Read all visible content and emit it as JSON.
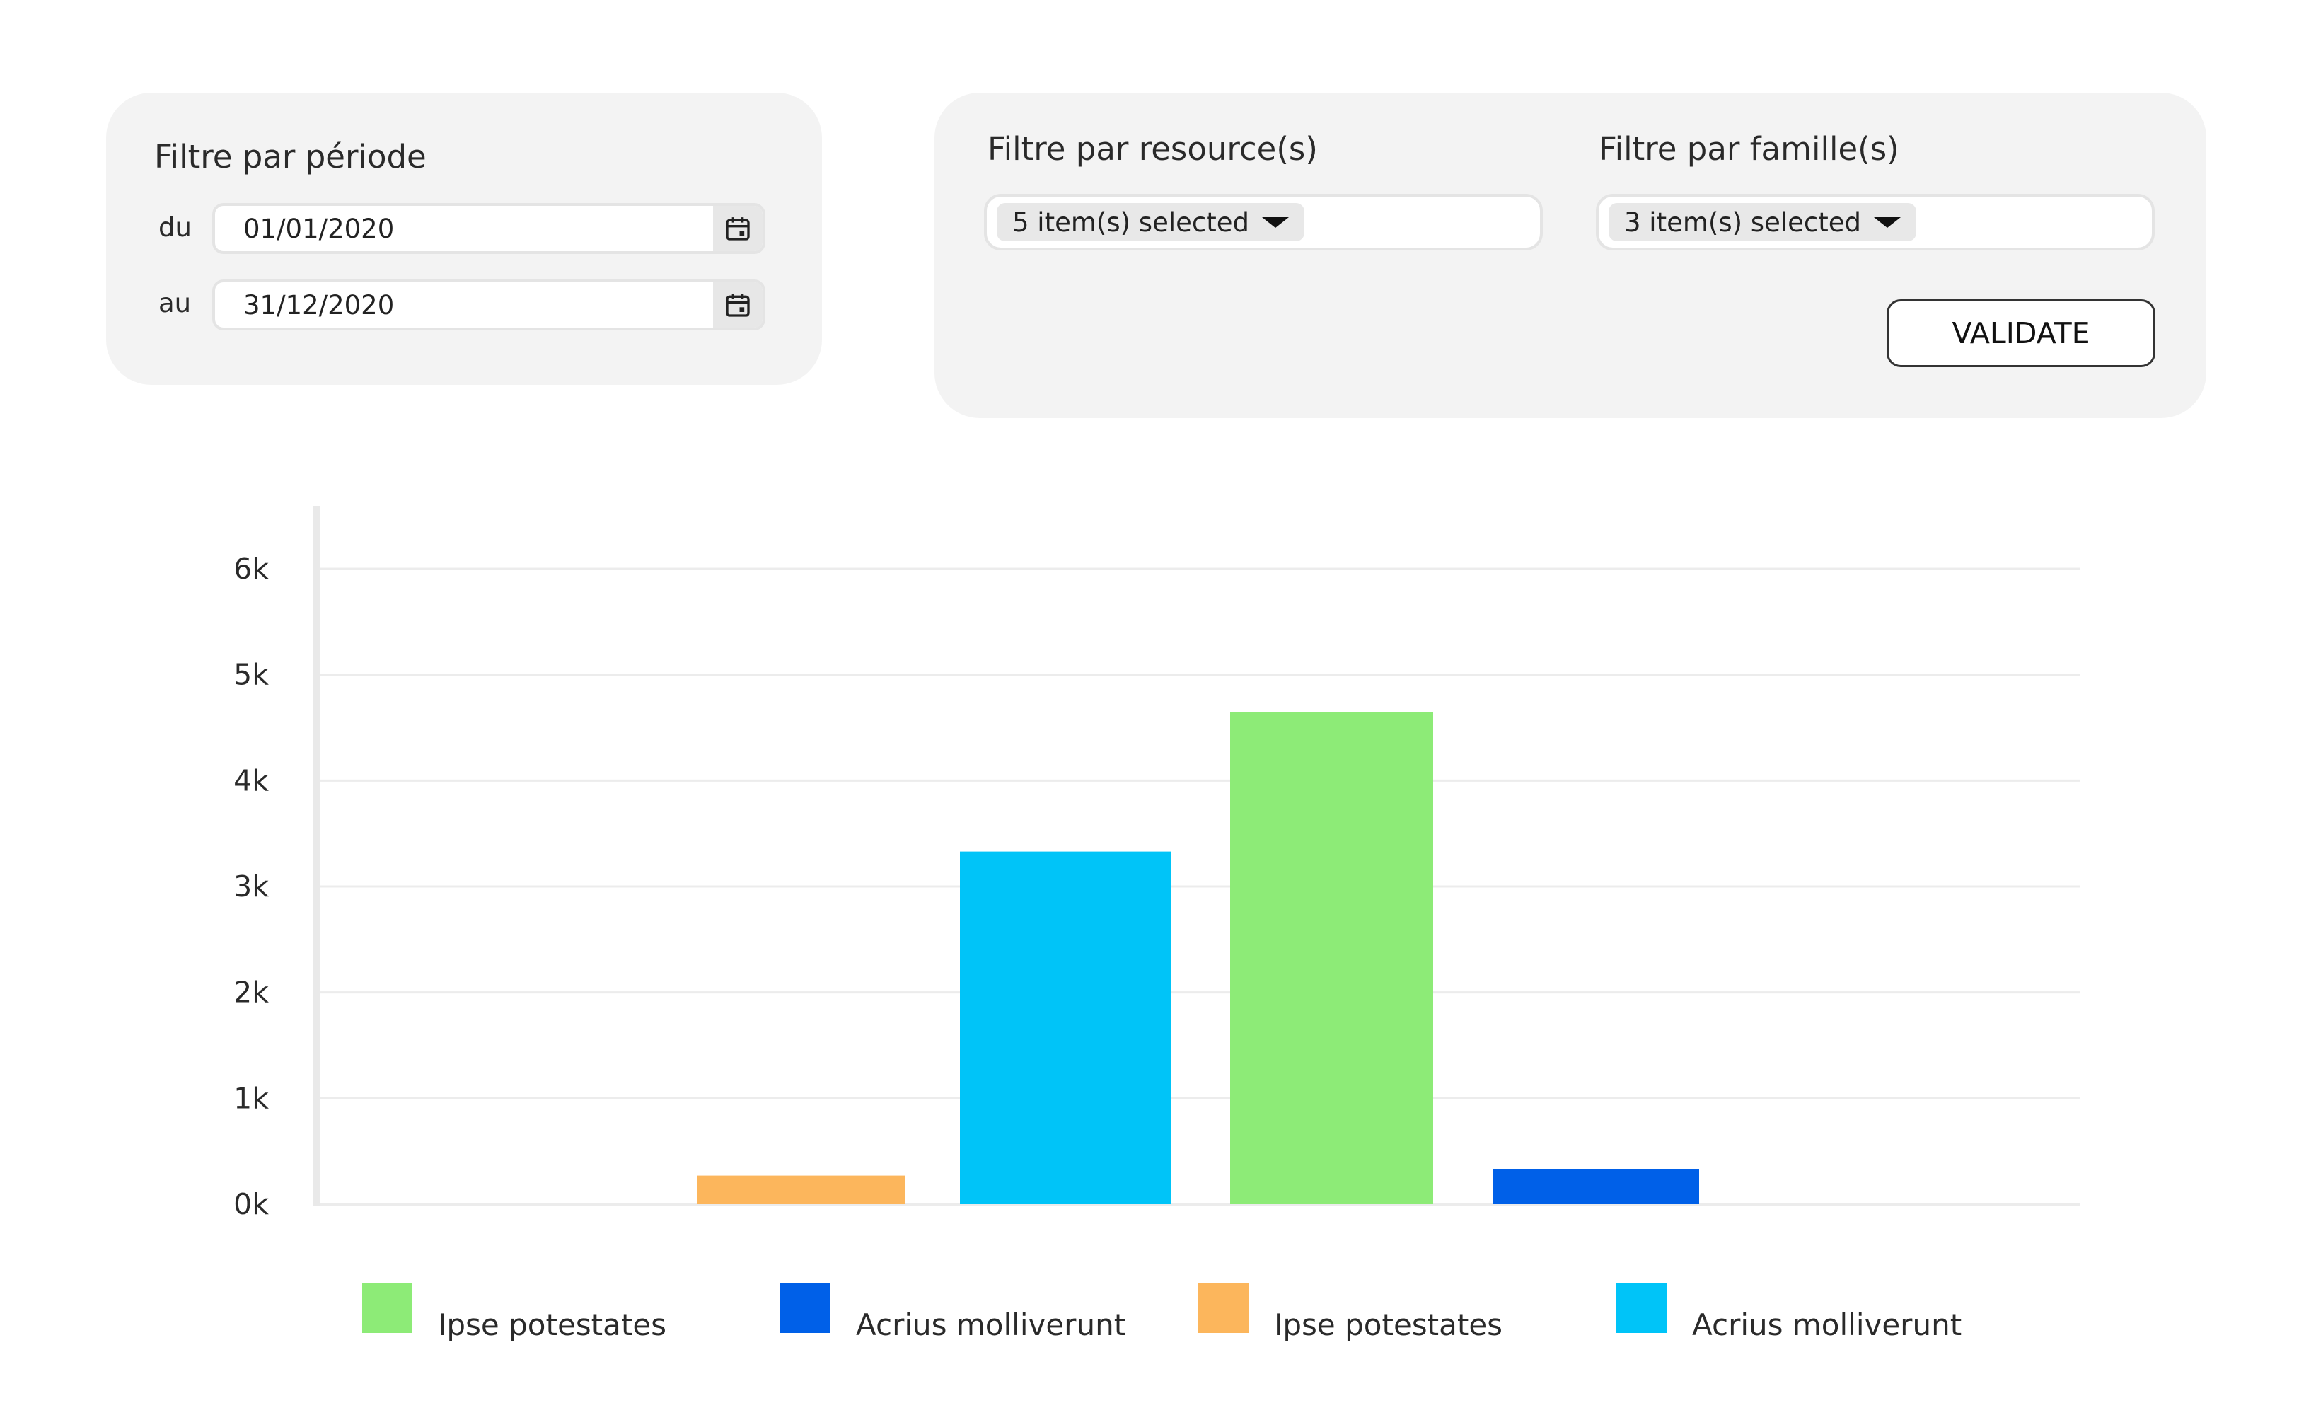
{
  "period_filter": {
    "title": "Filtre par période",
    "from_label": "du",
    "from_value": "01/01/2020",
    "to_label": "au",
    "to_value": "31/12/2020"
  },
  "resource_filter": {
    "title": "Filtre par resource(s)",
    "selected_text": "5 item(s) selected"
  },
  "family_filter": {
    "title": "Filtre par famille(s)",
    "selected_text": "3 item(s) selected"
  },
  "validate_label": "VALIDATE",
  "chart_data": {
    "type": "bar",
    "ylim": [
      0,
      6000
    ],
    "yticks": [
      0,
      1000,
      2000,
      3000,
      4000,
      5000,
      6000
    ],
    "ytick_labels": [
      "0k",
      "1k",
      "2k",
      "3k",
      "4k",
      "5k",
      "6k"
    ],
    "grid": true,
    "legend_placement": "bottom",
    "series": [
      {
        "name": "Ipse potestates",
        "color": "#8deb77",
        "value": 4650
      },
      {
        "name": "Acrius molliverunt",
        "color": "#0060e8",
        "value": 330
      },
      {
        "name": "Ipse potestates",
        "color": "#fcb65c",
        "value": 270
      },
      {
        "name": "Acrius molliverunt",
        "color": "#00c4f8",
        "value": 3330
      }
    ]
  }
}
